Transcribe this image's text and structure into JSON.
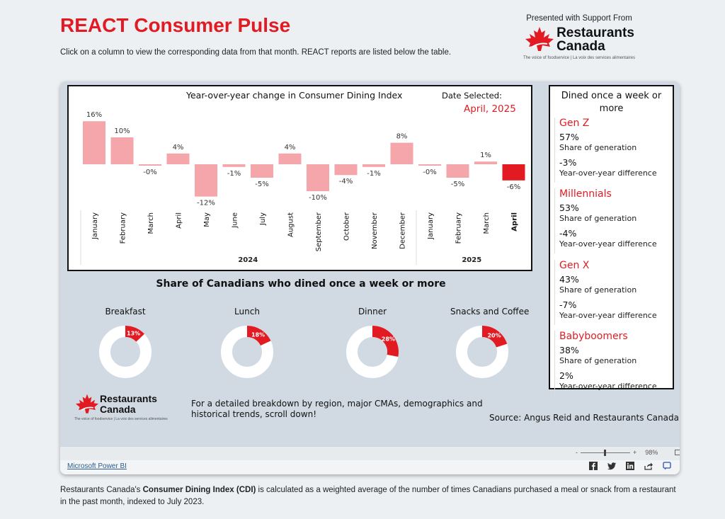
{
  "header": {
    "title": "REACT Consumer Pulse",
    "subtitle": "Click on a column to view the corresponding data from that month. REACT reports are listed below the table.",
    "sponsor_label": "Presented with Support From",
    "logo_line1": "Restaurants",
    "logo_line2": "Canada",
    "logo_tagline": "The voice of foodservice | La voix des services alimentaires"
  },
  "chart": {
    "title": "Year-over-year change in Consumer Dining Index",
    "date_label": "Date Selected:",
    "date_value": "April, 2025"
  },
  "chart_data": {
    "type": "bar",
    "title": "Year-over-year change in Consumer Dining Index",
    "categories": [
      "January",
      "February",
      "March",
      "April",
      "May",
      "June",
      "July",
      "August",
      "September",
      "October",
      "November",
      "December",
      "January",
      "February",
      "March",
      "April"
    ],
    "years": [
      {
        "label": "2024",
        "start": 0,
        "end": 11
      },
      {
        "label": "2025",
        "start": 12,
        "end": 15
      }
    ],
    "values": [
      16,
      10,
      -0.4,
      4,
      -12,
      -1,
      -5,
      4,
      -10,
      -4,
      -1,
      8,
      -0.4,
      -5,
      1,
      -6
    ],
    "value_labels": [
      "16%",
      "10%",
      "-0%",
      "4%",
      "-12%",
      "-1%",
      "-5%",
      "4%",
      "-10%",
      "-4%",
      "-1%",
      "8%",
      "-0%",
      "-5%",
      "1%",
      "-6%"
    ],
    "selected_index": 15,
    "unit": "%",
    "colors": {
      "default": "#f4a6ab",
      "selected": "#e21b23"
    }
  },
  "generations": {
    "title": "Dined once a week or more",
    "share_caption": "Share of generation",
    "diff_caption": "Year-over-year difference",
    "items": [
      {
        "name": "Gen Z",
        "share": "57%",
        "diff": "-3%"
      },
      {
        "name": "Millennials",
        "share": "53%",
        "diff": "-4%"
      },
      {
        "name": "Gen X",
        "share": "43%",
        "diff": "-7%"
      },
      {
        "name": "Babyboomers",
        "share": "38%",
        "diff": "2%"
      }
    ]
  },
  "meals": {
    "title": "Share of Canadians who dined once a week or more",
    "items": [
      {
        "label": "Breakfast",
        "value": 13,
        "text": "13%"
      },
      {
        "label": "Lunch",
        "value": 18,
        "text": "18%"
      },
      {
        "label": "Dinner",
        "value": 28,
        "text": "28%"
      },
      {
        "label": "Snacks and Coffee",
        "value": 20,
        "text": "20%"
      }
    ]
  },
  "footer": {
    "detail": "For a detailed breakdown by region, major CMAs, demographics and historical trends, scroll down!",
    "source": "Source: Angus Reid and Restaurants Canada"
  },
  "powerbi": {
    "link": "Microsoft Power BI",
    "zoom_minus": "-",
    "zoom_plus": "+",
    "zoom": "98%"
  },
  "bottom": {
    "prefix": "Restaurants Canada's ",
    "bold": "Consumer Dining Index (CDI)",
    "suffix": " is calculated as a weighted average of the number of times Canadians purchased a meal or snack from a restaurant in the past month, indexed to July 2023."
  },
  "colors": {
    "brand_red": "#e21b23",
    "bar_light": "#f4a6ab",
    "donut_bg": "#ffffff"
  }
}
